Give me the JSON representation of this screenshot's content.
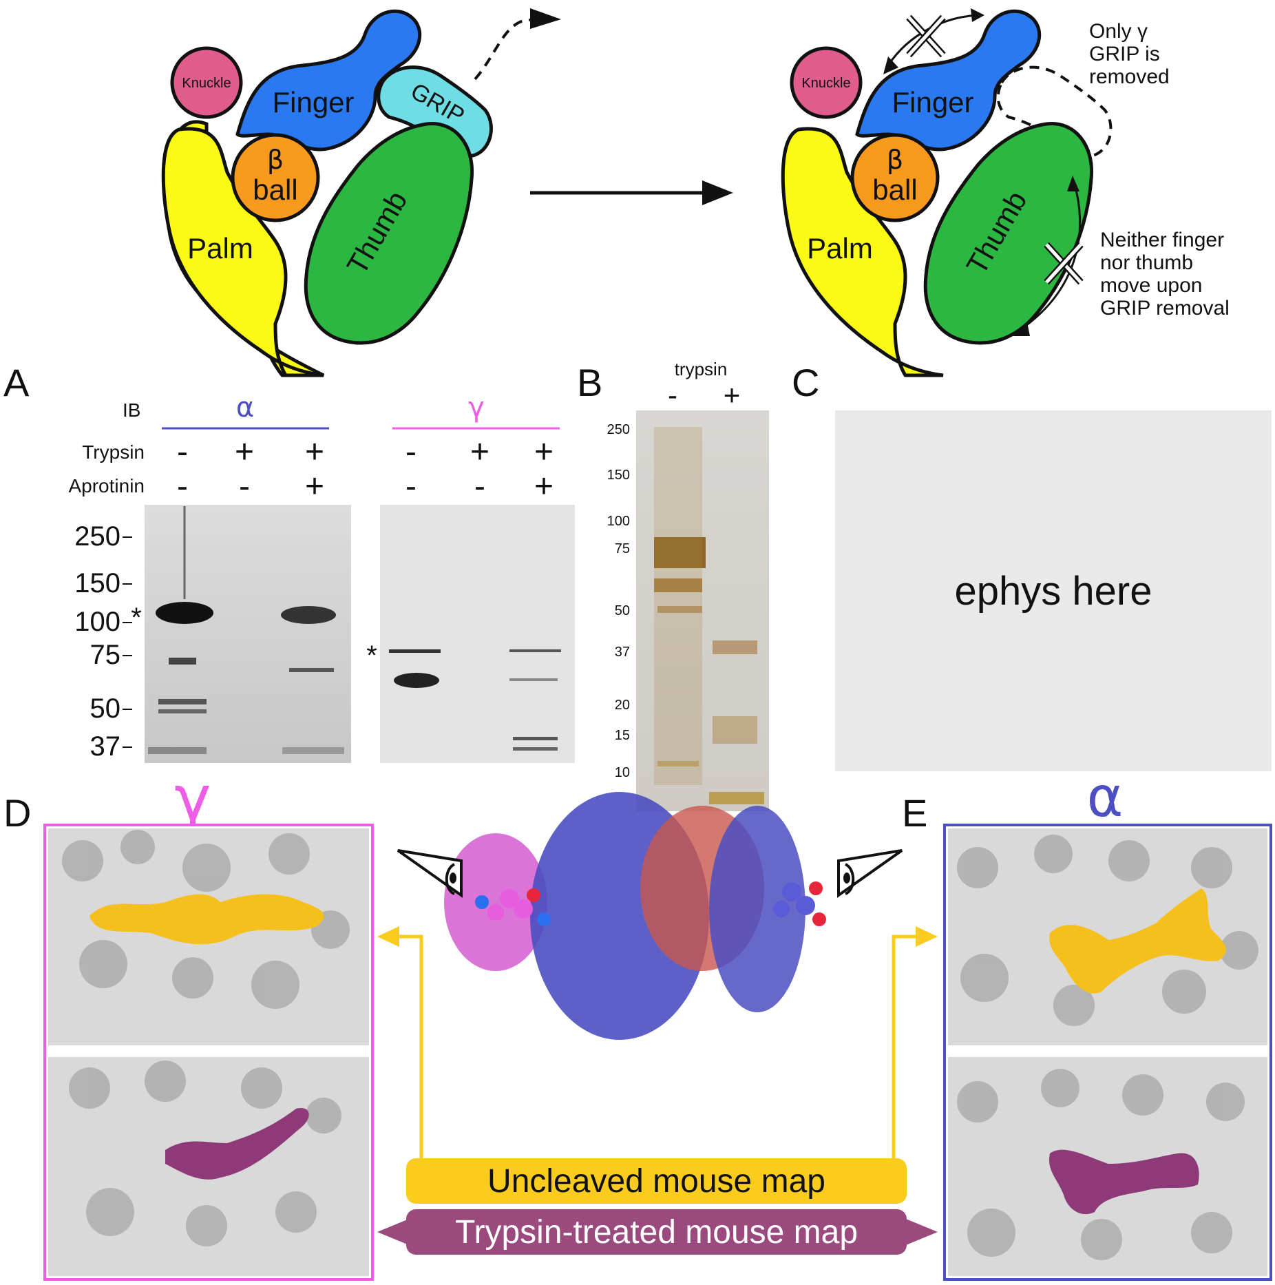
{
  "schematic": {
    "left": {
      "knuckle": "Knuckle",
      "finger": "Finger",
      "grip": "GRIP",
      "beta_ball_1": "β",
      "beta_ball_2": "ball",
      "palm": "Palm",
      "thumb": "Thumb"
    },
    "right": {
      "knuckle": "Knuckle",
      "finger": "Finger",
      "beta_ball_1": "β",
      "beta_ball_2": "ball",
      "palm": "Palm",
      "thumb": "Thumb",
      "note_top": [
        "Only γ",
        "GRIP is",
        "removed"
      ],
      "note_bottom": [
        "Neither finger",
        "nor thumb",
        "move upon",
        "GRIP removal"
      ]
    }
  },
  "panels": {
    "A": "A",
    "B": "B",
    "C": "C",
    "D": "D",
    "E": "E"
  },
  "panel_a": {
    "ib_label": "IB",
    "alpha_label": "α",
    "gamma_label": "γ",
    "row_trypsin": "Trypsin",
    "row_aprotinin": "Aprotinin",
    "trypsin_signs": [
      "-",
      "+",
      "+",
      "-",
      "+",
      "+"
    ],
    "aprotinin_signs": [
      "-",
      "-",
      "+",
      "-",
      "-",
      "+"
    ],
    "mw_markers": [
      "250",
      "150",
      "100",
      "75",
      "50",
      "37"
    ],
    "asterisk": "*"
  },
  "panel_b": {
    "title": "trypsin",
    "lanes": [
      "-",
      "+"
    ],
    "mw_markers": [
      "250",
      "150",
      "100",
      "75",
      "50",
      "37",
      "20",
      "15",
      "10"
    ]
  },
  "panel_c": {
    "placeholder": "ephys here"
  },
  "panel_d": {
    "label": "γ"
  },
  "panel_e": {
    "label": "α"
  },
  "legend": {
    "uncleaved": "Uncleaved mouse map",
    "trypsin": "Trypsin-treated mouse map"
  },
  "colors": {
    "knuckle": "#e05c8c",
    "finger": "#2a79f0",
    "grip": "#6fdde4",
    "beta_ball": "#f79a1e",
    "palm": "#fafa14",
    "thumb": "#2bb742",
    "alpha": "#4b4fc1",
    "gamma": "#ee5de6",
    "uncleaved": "#f9cc1e",
    "trypsin": "#9a4a7d"
  }
}
